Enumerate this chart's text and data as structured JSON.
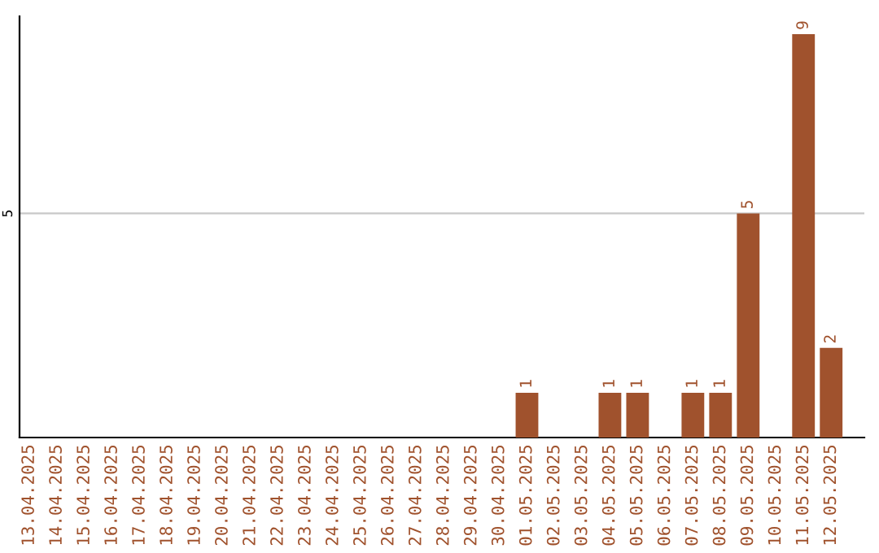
{
  "chart_data": {
    "type": "bar",
    "categories": [
      "13.04.2025",
      "14.04.2025",
      "15.04.2025",
      "16.04.2025",
      "17.04.2025",
      "18.04.2025",
      "19.04.2025",
      "20.04.2025",
      "21.04.2025",
      "22.04.2025",
      "23.04.2025",
      "24.04.2025",
      "25.04.2025",
      "26.04.2025",
      "27.04.2025",
      "28.04.2025",
      "29.04.2025",
      "30.04.2025",
      "01.05.2025",
      "02.05.2025",
      "03.05.2025",
      "04.05.2025",
      "05.05.2025",
      "06.05.2025",
      "07.05.2025",
      "08.05.2025",
      "09.05.2025",
      "10.05.2025",
      "11.05.2025",
      "12.05.2025"
    ],
    "values": [
      null,
      null,
      null,
      null,
      null,
      null,
      null,
      null,
      null,
      null,
      null,
      null,
      null,
      null,
      null,
      null,
      null,
      null,
      1,
      null,
      null,
      1,
      1,
      null,
      1,
      1,
      5,
      null,
      9,
      2
    ],
    "data_labels": true,
    "color": "#a0522d",
    "ylim": [
      0,
      9.4
    ],
    "yticks": [
      5
    ],
    "grid": "y"
  }
}
